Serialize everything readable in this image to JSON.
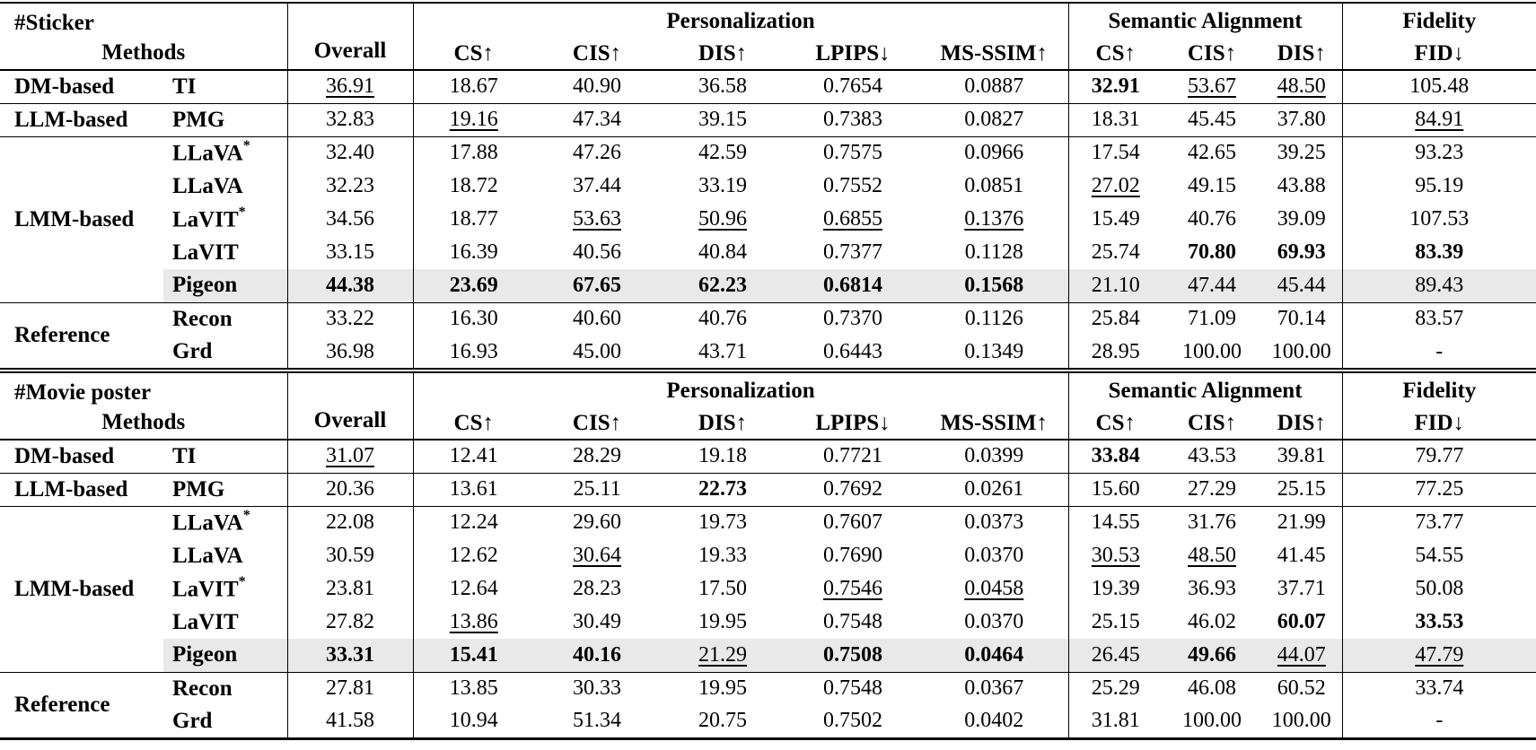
{
  "page": {
    "background_color": "#ffffff",
    "text_color": "#000000",
    "highlight_color": "#e9e9e9"
  },
  "tables": [
    {
      "id": "sticker",
      "corner_title": "#Sticker",
      "corner_subtitle": "Methods",
      "overall_label": "Overall",
      "groups": [
        {
          "label": "Personalization",
          "columns": [
            "CS↑",
            "CIS↑",
            "DIS↑",
            "LPIPS↓",
            "MS-SSIM↑"
          ]
        },
        {
          "label": "Semantic Alignment",
          "columns": [
            "CS↑",
            "CIS↑",
            "DIS↑"
          ]
        },
        {
          "label": "Fidelity",
          "columns": [
            "FID↓"
          ]
        }
      ],
      "row_groups": [
        {
          "category": "DM-based",
          "rows": [
            {
              "method": "TI",
              "highlight": false,
              "cells": [
                {
                  "v": "36.91",
                  "s": "u"
                },
                {
                  "v": "18.67"
                },
                {
                  "v": "40.90"
                },
                {
                  "v": "36.58"
                },
                {
                  "v": "0.7654"
                },
                {
                  "v": "0.0887"
                },
                {
                  "v": "32.91",
                  "s": "b"
                },
                {
                  "v": "53.67",
                  "s": "u"
                },
                {
                  "v": "48.50",
                  "s": "u"
                },
                {
                  "v": "105.48"
                }
              ]
            }
          ]
        },
        {
          "category": "LLM-based",
          "rows": [
            {
              "method": "PMG",
              "highlight": false,
              "cells": [
                {
                  "v": "32.83"
                },
                {
                  "v": "19.16",
                  "s": "u"
                },
                {
                  "v": "47.34"
                },
                {
                  "v": "39.15"
                },
                {
                  "v": "0.7383"
                },
                {
                  "v": "0.0827"
                },
                {
                  "v": "18.31"
                },
                {
                  "v": "45.45"
                },
                {
                  "v": "37.80"
                },
                {
                  "v": "84.91",
                  "s": "u"
                }
              ]
            }
          ]
        },
        {
          "category": "LMM-based",
          "rows": [
            {
              "method": "LLaVA",
              "method_sup": "*",
              "highlight": false,
              "cells": [
                {
                  "v": "32.40"
                },
                {
                  "v": "17.88"
                },
                {
                  "v": "47.26"
                },
                {
                  "v": "42.59"
                },
                {
                  "v": "0.7575"
                },
                {
                  "v": "0.0966"
                },
                {
                  "v": "17.54"
                },
                {
                  "v": "42.65"
                },
                {
                  "v": "39.25"
                },
                {
                  "v": "93.23"
                }
              ]
            },
            {
              "method": "LLaVA",
              "highlight": false,
              "cells": [
                {
                  "v": "32.23"
                },
                {
                  "v": "18.72"
                },
                {
                  "v": "37.44"
                },
                {
                  "v": "33.19"
                },
                {
                  "v": "0.7552"
                },
                {
                  "v": "0.0851"
                },
                {
                  "v": "27.02",
                  "s": "u"
                },
                {
                  "v": "49.15"
                },
                {
                  "v": "43.88"
                },
                {
                  "v": "95.19"
                }
              ]
            },
            {
              "method": "LaVIT",
              "method_sup": "*",
              "highlight": false,
              "cells": [
                {
                  "v": "34.56"
                },
                {
                  "v": "18.77"
                },
                {
                  "v": "53.63",
                  "s": "u"
                },
                {
                  "v": "50.96",
                  "s": "u"
                },
                {
                  "v": "0.6855",
                  "s": "u"
                },
                {
                  "v": "0.1376",
                  "s": "u"
                },
                {
                  "v": "15.49"
                },
                {
                  "v": "40.76"
                },
                {
                  "v": "39.09"
                },
                {
                  "v": "107.53"
                }
              ]
            },
            {
              "method": "LaVIT",
              "highlight": false,
              "cells": [
                {
                  "v": "33.15"
                },
                {
                  "v": "16.39"
                },
                {
                  "v": "40.56"
                },
                {
                  "v": "40.84"
                },
                {
                  "v": "0.7377"
                },
                {
                  "v": "0.1128"
                },
                {
                  "v": "25.74"
                },
                {
                  "v": "70.80",
                  "s": "b"
                },
                {
                  "v": "69.93",
                  "s": "b"
                },
                {
                  "v": "83.39",
                  "s": "b"
                }
              ]
            },
            {
              "method": "Pigeon",
              "highlight": true,
              "cells": [
                {
                  "v": "44.38",
                  "s": "b"
                },
                {
                  "v": "23.69",
                  "s": "b"
                },
                {
                  "v": "67.65",
                  "s": "b"
                },
                {
                  "v": "62.23",
                  "s": "b"
                },
                {
                  "v": "0.6814",
                  "s": "b"
                },
                {
                  "v": "0.1568",
                  "s": "b"
                },
                {
                  "v": "21.10"
                },
                {
                  "v": "47.44"
                },
                {
                  "v": "45.44"
                },
                {
                  "v": "89.43"
                }
              ]
            }
          ]
        },
        {
          "category": "Reference",
          "rows": [
            {
              "method": "Recon",
              "highlight": false,
              "cells": [
                {
                  "v": "33.22"
                },
                {
                  "v": "16.30"
                },
                {
                  "v": "40.60"
                },
                {
                  "v": "40.76"
                },
                {
                  "v": "0.7370"
                },
                {
                  "v": "0.1126"
                },
                {
                  "v": "25.84"
                },
                {
                  "v": "71.09"
                },
                {
                  "v": "70.14"
                },
                {
                  "v": "83.57"
                }
              ]
            },
            {
              "method": "Grd",
              "highlight": false,
              "cells": [
                {
                  "v": "36.98"
                },
                {
                  "v": "16.93"
                },
                {
                  "v": "45.00"
                },
                {
                  "v": "43.71"
                },
                {
                  "v": "0.6443"
                },
                {
                  "v": "0.1349"
                },
                {
                  "v": "28.95"
                },
                {
                  "v": "100.00"
                },
                {
                  "v": "100.00"
                },
                {
                  "v": "-"
                }
              ]
            }
          ]
        }
      ]
    },
    {
      "id": "movie-poster",
      "corner_title": "#Movie poster",
      "corner_subtitle": "Methods",
      "overall_label": "Overall",
      "groups": [
        {
          "label": "Personalization",
          "columns": [
            "CS↑",
            "CIS↑",
            "DIS↑",
            "LPIPS↓",
            "MS-SSIM↑"
          ]
        },
        {
          "label": "Semantic Alignment",
          "columns": [
            "CS↑",
            "CIS↑",
            "DIS↑"
          ]
        },
        {
          "label": "Fidelity",
          "columns": [
            "FID↓"
          ]
        }
      ],
      "row_groups": [
        {
          "category": "DM-based",
          "rows": [
            {
              "method": "TI",
              "highlight": false,
              "cells": [
                {
                  "v": "31.07",
                  "s": "u"
                },
                {
                  "v": "12.41"
                },
                {
                  "v": "28.29"
                },
                {
                  "v": "19.18"
                },
                {
                  "v": "0.7721"
                },
                {
                  "v": "0.0399"
                },
                {
                  "v": "33.84",
                  "s": "b"
                },
                {
                  "v": "43.53"
                },
                {
                  "v": "39.81"
                },
                {
                  "v": "79.77"
                }
              ]
            }
          ]
        },
        {
          "category": "LLM-based",
          "rows": [
            {
              "method": "PMG",
              "highlight": false,
              "cells": [
                {
                  "v": "20.36"
                },
                {
                  "v": "13.61"
                },
                {
                  "v": "25.11"
                },
                {
                  "v": "22.73",
                  "s": "b"
                },
                {
                  "v": "0.7692"
                },
                {
                  "v": "0.0261"
                },
                {
                  "v": "15.60"
                },
                {
                  "v": "27.29"
                },
                {
                  "v": "25.15"
                },
                {
                  "v": "77.25"
                }
              ]
            }
          ]
        },
        {
          "category": "LMM-based",
          "rows": [
            {
              "method": "LLaVA",
              "method_sup": "*",
              "highlight": false,
              "cells": [
                {
                  "v": "22.08"
                },
                {
                  "v": "12.24"
                },
                {
                  "v": "29.60"
                },
                {
                  "v": "19.73"
                },
                {
                  "v": "0.7607"
                },
                {
                  "v": "0.0373"
                },
                {
                  "v": "14.55"
                },
                {
                  "v": "31.76"
                },
                {
                  "v": "21.99"
                },
                {
                  "v": "73.77"
                }
              ]
            },
            {
              "method": "LLaVA",
              "highlight": false,
              "cells": [
                {
                  "v": "30.59"
                },
                {
                  "v": "12.62"
                },
                {
                  "v": "30.64",
                  "s": "u"
                },
                {
                  "v": "19.33"
                },
                {
                  "v": "0.7690"
                },
                {
                  "v": "0.0370"
                },
                {
                  "v": "30.53",
                  "s": "u"
                },
                {
                  "v": "48.50",
                  "s": "u"
                },
                {
                  "v": "41.45"
                },
                {
                  "v": "54.55"
                }
              ]
            },
            {
              "method": "LaVIT",
              "method_sup": "*",
              "highlight": false,
              "cells": [
                {
                  "v": "23.81"
                },
                {
                  "v": "12.64"
                },
                {
                  "v": "28.23"
                },
                {
                  "v": "17.50"
                },
                {
                  "v": "0.7546",
                  "s": "u"
                },
                {
                  "v": "0.0458",
                  "s": "u"
                },
                {
                  "v": "19.39"
                },
                {
                  "v": "36.93"
                },
                {
                  "v": "37.71"
                },
                {
                  "v": "50.08"
                }
              ]
            },
            {
              "method": "LaVIT",
              "highlight": false,
              "cells": [
                {
                  "v": "27.82"
                },
                {
                  "v": "13.86",
                  "s": "u"
                },
                {
                  "v": "30.49"
                },
                {
                  "v": "19.95"
                },
                {
                  "v": "0.7548"
                },
                {
                  "v": "0.0370"
                },
                {
                  "v": "25.15"
                },
                {
                  "v": "46.02"
                },
                {
                  "v": "60.07",
                  "s": "b"
                },
                {
                  "v": "33.53",
                  "s": "b"
                }
              ]
            },
            {
              "method": "Pigeon",
              "highlight": true,
              "cells": [
                {
                  "v": "33.31",
                  "s": "b"
                },
                {
                  "v": "15.41",
                  "s": "b"
                },
                {
                  "v": "40.16",
                  "s": "b"
                },
                {
                  "v": "21.29",
                  "s": "u"
                },
                {
                  "v": "0.7508",
                  "s": "b"
                },
                {
                  "v": "0.0464",
                  "s": "b"
                },
                {
                  "v": "26.45"
                },
                {
                  "v": "49.66",
                  "s": "b"
                },
                {
                  "v": "44.07",
                  "s": "u"
                },
                {
                  "v": "47.79",
                  "s": "u"
                }
              ]
            }
          ]
        },
        {
          "category": "Reference",
          "rows": [
            {
              "method": "Recon",
              "highlight": false,
              "cells": [
                {
                  "v": "27.81"
                },
                {
                  "v": "13.85"
                },
                {
                  "v": "30.33"
                },
                {
                  "v": "19.95"
                },
                {
                  "v": "0.7548"
                },
                {
                  "v": "0.0367"
                },
                {
                  "v": "25.29"
                },
                {
                  "v": "46.08"
                },
                {
                  "v": "60.52"
                },
                {
                  "v": "33.74"
                }
              ]
            },
            {
              "method": "Grd",
              "highlight": false,
              "cells": [
                {
                  "v": "41.58"
                },
                {
                  "v": "10.94"
                },
                {
                  "v": "51.34"
                },
                {
                  "v": "20.75"
                },
                {
                  "v": "0.7502"
                },
                {
                  "v": "0.0402"
                },
                {
                  "v": "31.81"
                },
                {
                  "v": "100.00"
                },
                {
                  "v": "100.00"
                },
                {
                  "v": "-"
                }
              ]
            }
          ]
        }
      ]
    }
  ]
}
